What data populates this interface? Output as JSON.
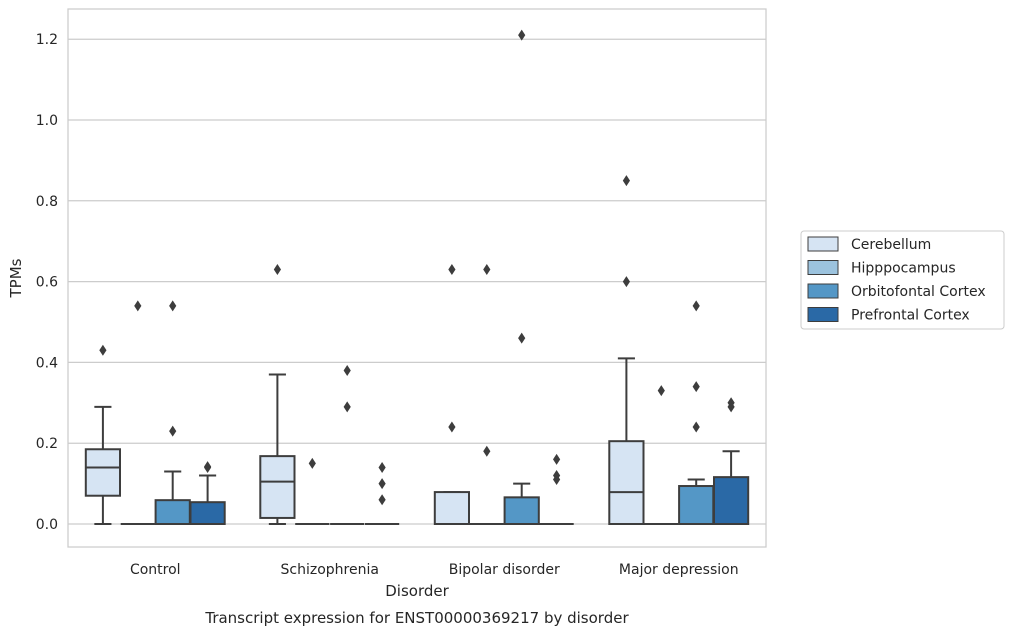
{
  "chart_data": {
    "type": "box",
    "xlabel": "Disorder",
    "ylabel": "TPMs",
    "caption": "Transcript expression for ENST00000369217 by disorder",
    "categories": [
      "Control",
      "Schizophrenia",
      "Bipolar disorder",
      "Major depression"
    ],
    "ylim": [
      -0.06,
      1.27
    ],
    "yticks": [
      0.0,
      0.2,
      0.4,
      0.6,
      0.8,
      1.0,
      1.2
    ],
    "ytick_labels": [
      "0.0",
      "0.2",
      "0.4",
      "0.6",
      "0.8",
      "1.0",
      "1.2"
    ],
    "grid": "horizontal",
    "legend_position": "right",
    "series": [
      {
        "name": "Cerebellum",
        "color": "#d6e4f3",
        "boxes": [
          {
            "whislo": 0.0,
            "q1": 0.07,
            "med": 0.14,
            "q3": 0.185,
            "whishi": 0.29,
            "fliers": [
              0.43
            ]
          },
          {
            "whislo": 0.0,
            "q1": 0.015,
            "med": 0.105,
            "q3": 0.168,
            "whishi": 0.37,
            "fliers": [
              0.63
            ]
          },
          {
            "whislo": 0.0,
            "q1": 0.0,
            "med": 0.0,
            "q3": 0.079,
            "whishi": 0.079,
            "fliers": [
              0.24,
              0.63
            ]
          },
          {
            "whislo": 0.0,
            "q1": 0.0,
            "med": 0.079,
            "q3": 0.205,
            "whishi": 0.41,
            "fliers": [
              0.6,
              0.85
            ]
          }
        ]
      },
      {
        "name": "Hipppocampus",
        "color": "#9cc3de",
        "boxes": [
          {
            "whislo": 0.0,
            "q1": 0.0,
            "med": 0.0,
            "q3": 0.0,
            "whishi": 0.0,
            "fliers": [
              0.54
            ]
          },
          {
            "whislo": 0.0,
            "q1": 0.0,
            "med": 0.0,
            "q3": 0.0,
            "whishi": 0.0,
            "fliers": [
              0.15
            ]
          },
          {
            "whislo": 0.0,
            "q1": 0.0,
            "med": 0.0,
            "q3": 0.0,
            "whishi": 0.0,
            "fliers": [
              0.18,
              0.63
            ]
          },
          {
            "whislo": 0.0,
            "q1": 0.0,
            "med": 0.0,
            "q3": 0.0,
            "whishi": 0.0,
            "fliers": [
              0.33
            ]
          }
        ]
      },
      {
        "name": "Orbitofontal Cortex",
        "color": "#5497c6",
        "boxes": [
          {
            "whislo": 0.0,
            "q1": 0.0,
            "med": 0.0,
            "q3": 0.059,
            "whishi": 0.13,
            "fliers": [
              0.23,
              0.54
            ]
          },
          {
            "whislo": 0.0,
            "q1": 0.0,
            "med": 0.0,
            "q3": 0.0,
            "whishi": 0.0,
            "fliers": [
              0.29,
              0.38
            ]
          },
          {
            "whislo": 0.0,
            "q1": 0.0,
            "med": 0.0,
            "q3": 0.066,
            "whishi": 0.1,
            "fliers": [
              0.46,
              1.21
            ]
          },
          {
            "whislo": 0.0,
            "q1": 0.0,
            "med": 0.0,
            "q3": 0.094,
            "whishi": 0.11,
            "fliers": [
              0.24,
              0.34,
              0.54
            ]
          }
        ]
      },
      {
        "name": "Prefrontal Cortex",
        "color": "#2a69a6",
        "boxes": [
          {
            "whislo": 0.0,
            "q1": 0.0,
            "med": 0.0,
            "q3": 0.054,
            "whishi": 0.12,
            "fliers": [
              0.14,
              0.142
            ]
          },
          {
            "whislo": 0.0,
            "q1": 0.0,
            "med": 0.0,
            "q3": 0.0,
            "whishi": 0.0,
            "fliers": [
              0.06,
              0.1,
              0.14
            ]
          },
          {
            "whislo": 0.0,
            "q1": 0.0,
            "med": 0.0,
            "q3": 0.0,
            "whishi": 0.0,
            "fliers": [
              0.11,
              0.12,
              0.16
            ]
          },
          {
            "whislo": 0.0,
            "q1": 0.0,
            "med": 0.0,
            "q3": 0.116,
            "whishi": 0.18,
            "fliers": [
              0.29,
              0.3
            ]
          }
        ]
      }
    ]
  }
}
